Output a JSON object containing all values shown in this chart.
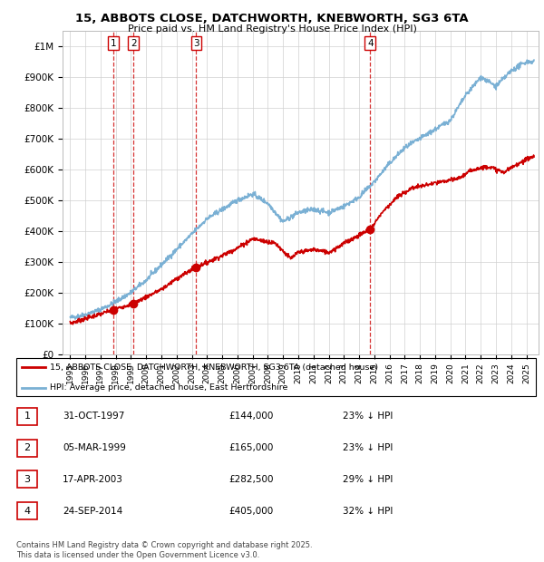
{
  "title": "15, ABBOTS CLOSE, DATCHWORTH, KNEBWORTH, SG3 6TA",
  "subtitle": "Price paid vs. HM Land Registry's House Price Index (HPI)",
  "xlim": [
    1994.5,
    2025.8
  ],
  "ylim": [
    0,
    1050000
  ],
  "yticks": [
    0,
    100000,
    200000,
    300000,
    400000,
    500000,
    600000,
    700000,
    800000,
    900000,
    1000000
  ],
  "ytick_labels": [
    "£0",
    "£100K",
    "£200K",
    "£300K",
    "£400K",
    "£500K",
    "£600K",
    "£700K",
    "£800K",
    "£900K",
    "£1M"
  ],
  "line_color_price": "#cc0000",
  "line_color_hpi": "#7ab0d4",
  "sale_dates": [
    1997.83,
    1999.17,
    2003.29,
    2014.73
  ],
  "sale_prices": [
    144000,
    165000,
    282500,
    405000
  ],
  "sale_labels": [
    "1",
    "2",
    "3",
    "4"
  ],
  "legend_price_label": "15, ABBOTS CLOSE, DATCHWORTH, KNEBWORTH, SG3 6TA (detached house)",
  "legend_hpi_label": "HPI: Average price, detached house, East Hertfordshire",
  "table_entries": [
    {
      "num": "1",
      "date": "31-OCT-1997",
      "price": "£144,000",
      "hpi": "23% ↓ HPI"
    },
    {
      "num": "2",
      "date": "05-MAR-1999",
      "price": "£165,000",
      "hpi": "23% ↓ HPI"
    },
    {
      "num": "3",
      "date": "17-APR-2003",
      "price": "£282,500",
      "hpi": "29% ↓ HPI"
    },
    {
      "num": "4",
      "date": "24-SEP-2014",
      "price": "£405,000",
      "hpi": "32% ↓ HPI"
    }
  ],
  "footer": "Contains HM Land Registry data © Crown copyright and database right 2025.\nThis data is licensed under the Open Government Licence v3.0.",
  "background_color": "#ffffff",
  "grid_color": "#d0d0d0"
}
